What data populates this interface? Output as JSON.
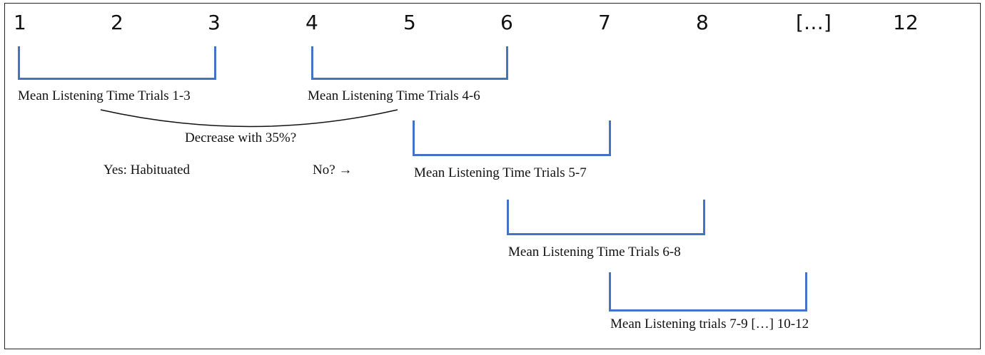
{
  "trial_numbers": [
    "1",
    "2",
    "3",
    "4",
    "5",
    "6",
    "7",
    "8",
    "[…]",
    "12"
  ],
  "windows": [
    {
      "label": "Mean Listening Time Trials 1-3"
    },
    {
      "label": "Mean Listening Time Trials 4-6"
    },
    {
      "label": "Mean Listening Time Trials 5-7"
    },
    {
      "label": "Mean Listening Time Trials 6-8"
    },
    {
      "label": "Mean Listening trials 7-9 […] 10-12"
    }
  ],
  "criterion": {
    "question": "Decrease with 35%?",
    "yes": "Yes: Habituated",
    "no": "No? →"
  },
  "colors": {
    "bracket": "#4472c4",
    "text": "#111111",
    "frame": "#222222"
  }
}
